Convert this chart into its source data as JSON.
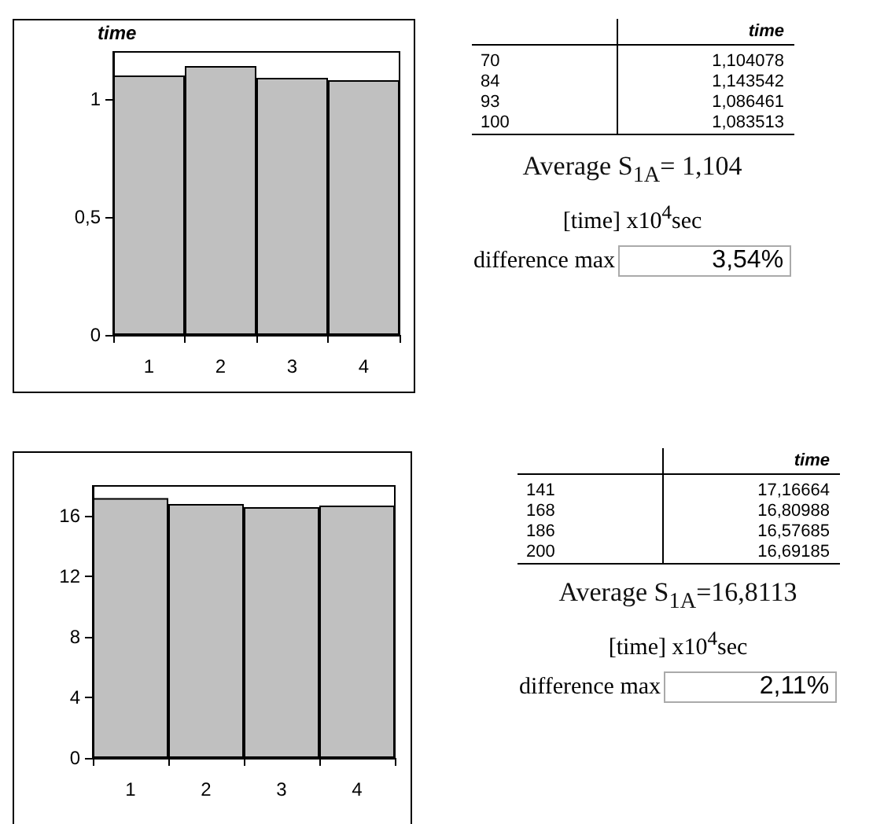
{
  "chart_data": [
    {
      "type": "bar",
      "ylabel": "time",
      "categories": [
        "1",
        "2",
        "3",
        "4"
      ],
      "values": [
        1.1,
        1.14,
        1.09,
        1.08
      ],
      "color": "#c0c0c0",
      "ylim": [
        0,
        1.2
      ],
      "yticks": [
        0,
        {
          "value": 0.5,
          "label": "0,5"
        },
        1
      ],
      "grid": false
    },
    {
      "type": "other",
      "title": "time",
      "annotations": [
        "70",
        "1,104078",
        "84",
        "1,143542",
        "93",
        "1,086461",
        "100",
        "1,083513",
        "Average S$_{1A}$= 1,104",
        "[time] x10$^{4}$sec",
        "difference max",
        "3,54%"
      ]
    },
    {
      "type": "bar",
      "categories": [
        "1",
        "2",
        "3",
        "4"
      ],
      "values": [
        17.2,
        16.8,
        16.6,
        16.7
      ],
      "color": "#c0c0c0",
      "ylim": [
        0,
        18
      ],
      "yticks": [
        0,
        4,
        8,
        12,
        16
      ],
      "grid": false
    },
    {
      "type": "other",
      "title": "time",
      "annotations": [
        "141",
        "17,16664",
        "168",
        "16,80988",
        "186",
        "16,57685",
        "200",
        "16,69185",
        "Average S$_{1A}$=16,8113",
        "[time] x10$^{4}$sec",
        "difference max",
        "2,11%"
      ]
    }
  ]
}
